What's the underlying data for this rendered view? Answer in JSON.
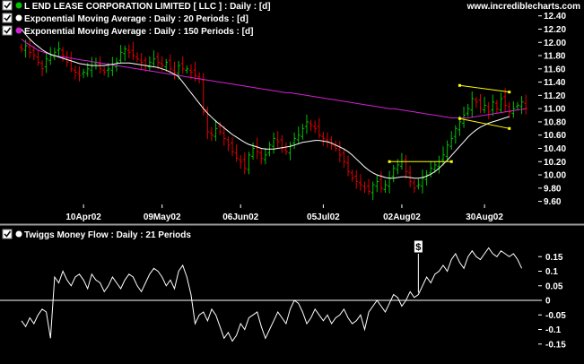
{
  "site": "www.incrediblecharts.com",
  "colors": {
    "background": "#000000",
    "text": "#ffffff",
    "up_bar": "#00c000",
    "down_bar": "#e00000",
    "ema20": "#ffffff",
    "ema150": "#d020d0",
    "trendline": "#ffff00",
    "zero_line": "#ffffff",
    "tmf_line": "#ffffff"
  },
  "legend": [
    {
      "text": "L END LEASE CORPORATION LIMITED  [ LLC ] : Daily : [d]",
      "marker": "green-dot"
    },
    {
      "text": "Exponential Moving Average : Daily : 20 Periods : [d]",
      "marker": "white-dot"
    },
    {
      "text": "Exponential Moving Average : Daily : 150 Periods : [d]",
      "marker": "magenta-dot"
    }
  ],
  "lower_legend": {
    "text": "Twiggs Money Flow : Daily : 21 Periods",
    "marker": "white-dot"
  },
  "signal_marker": "$",
  "chart_data": [
    {
      "type": "ohlc",
      "title": "L END LEASE CORPORATION LIMITED  [ LLC ] : Daily : [d]",
      "ylim": [
        9.5,
        12.45
      ],
      "yticks": [
        "12.40",
        "12.20",
        "12.00",
        "11.80",
        "11.60",
        "11.40",
        "11.20",
        "11.00",
        "10.80",
        "10.60",
        "10.40",
        "10.20",
        "10.00",
        "9.80",
        "9.60"
      ],
      "xticks": [
        {
          "label": "10Apr02",
          "day": 15
        },
        {
          "label": "09May02",
          "day": 34
        },
        {
          "label": "06Jun02",
          "day": 53
        },
        {
          "label": "05Jul02",
          "day": 73
        },
        {
          "label": "02Aug02",
          "day": 92
        },
        {
          "label": "30Aug02",
          "day": 112
        }
      ],
      "x_range_days": [
        0,
        125
      ],
      "close": [
        11.9,
        11.95,
        11.85,
        11.8,
        11.7,
        11.6,
        11.75,
        11.8,
        11.85,
        11.9,
        11.8,
        11.7,
        11.6,
        11.55,
        11.5,
        11.55,
        11.6,
        11.65,
        11.7,
        11.6,
        11.55,
        11.6,
        11.65,
        11.7,
        11.85,
        11.9,
        11.85,
        11.8,
        11.75,
        11.7,
        11.65,
        11.7,
        11.75,
        11.7,
        11.65,
        11.7,
        11.6,
        11.55,
        11.65,
        11.6,
        11.6,
        11.55,
        11.5,
        11.45,
        10.95,
        10.65,
        10.6,
        10.7,
        10.65,
        10.55,
        10.45,
        10.35,
        10.25,
        10.2,
        10.1,
        10.3,
        10.4,
        10.35,
        10.25,
        10.3,
        10.45,
        10.55,
        10.5,
        10.4,
        10.35,
        10.45,
        10.55,
        10.6,
        10.7,
        10.8,
        10.75,
        10.7,
        10.6,
        10.55,
        10.5,
        10.45,
        10.4,
        10.3,
        10.2,
        10.05,
        9.95,
        9.9,
        9.85,
        9.8,
        9.75,
        9.85,
        9.9,
        9.8,
        9.85,
        9.95,
        10.1,
        10.15,
        10.2,
        10.05,
        9.9,
        9.8,
        9.85,
        9.95,
        10.0,
        10.1,
        10.15,
        10.2,
        10.3,
        10.45,
        10.55,
        10.7,
        10.8,
        10.9,
        11.0,
        11.15,
        11.1,
        11.0,
        11.05,
        10.95,
        11.1,
        11.0,
        11.15,
        11.05,
        10.95,
        11.0,
        11.05,
        11.1,
        11.0
      ],
      "ema20": [
        12.2,
        12.12,
        12.05,
        11.99,
        11.94,
        11.89,
        11.85,
        11.82,
        11.8,
        11.78,
        11.76,
        11.74,
        11.72,
        11.7,
        11.68,
        11.67,
        11.66,
        11.65,
        11.65,
        11.65,
        11.65,
        11.66,
        11.67,
        11.68,
        11.69,
        11.69,
        11.69,
        11.68,
        11.67,
        11.66,
        11.65,
        11.64,
        11.63,
        11.62,
        11.6,
        11.58,
        11.55,
        11.52,
        11.48,
        11.4,
        11.32,
        11.24,
        11.16,
        11.08,
        11.0,
        10.93,
        10.87,
        10.81,
        10.76,
        10.71,
        10.66,
        10.61,
        10.57,
        10.53,
        10.49,
        10.46,
        10.44,
        10.42,
        10.4,
        10.39,
        10.39,
        10.39,
        10.4,
        10.41,
        10.42,
        10.43,
        10.45,
        10.47,
        10.49,
        10.5,
        10.51,
        10.52,
        10.52,
        10.51,
        10.5,
        10.48,
        10.45,
        10.42,
        10.39,
        10.35,
        10.3,
        10.24,
        10.18,
        10.12,
        10.07,
        10.03,
        10.0,
        9.98,
        9.96,
        9.95,
        9.95,
        9.96,
        9.97,
        9.97,
        9.96,
        9.95,
        9.95,
        9.96,
        9.98,
        10.01,
        10.05,
        10.1,
        10.16,
        10.22,
        10.29,
        10.36,
        10.43,
        10.5,
        10.57,
        10.63,
        10.68,
        10.72,
        10.75,
        10.78,
        10.8,
        10.82,
        10.84,
        10.86,
        10.88
      ],
      "ema150": [
        12.05,
        12.0,
        11.96,
        11.92,
        11.88,
        11.86,
        11.84,
        11.82,
        11.8,
        11.79,
        11.78,
        11.77,
        11.76,
        11.75,
        11.74,
        11.73,
        11.72,
        11.71,
        11.7,
        11.69,
        11.68,
        11.67,
        11.66,
        11.65,
        11.64,
        11.63,
        11.62,
        11.61,
        11.6,
        11.59,
        11.58,
        11.57,
        11.56,
        11.55,
        11.54,
        11.53,
        11.52,
        11.51,
        11.5,
        11.49,
        11.48,
        11.47,
        11.46,
        11.45,
        11.44,
        11.43,
        11.42,
        11.41,
        11.4,
        11.39,
        11.38,
        11.37,
        11.36,
        11.35,
        11.34,
        11.33,
        11.32,
        11.31,
        11.3,
        11.29,
        11.28,
        11.27,
        11.26,
        11.25,
        11.24,
        11.24,
        11.23,
        11.22,
        11.21,
        11.2,
        11.19,
        11.18,
        11.17,
        11.16,
        11.15,
        11.14,
        11.13,
        11.12,
        11.11,
        11.1,
        11.09,
        11.08,
        11.07,
        11.06,
        11.05,
        11.04,
        11.03,
        11.02,
        11.01,
        11.0,
        11.0,
        10.99,
        10.98,
        10.97,
        10.96,
        10.95,
        10.94,
        10.93,
        10.92,
        10.91,
        10.9,
        10.89,
        10.88,
        10.87,
        10.86,
        10.86,
        10.86,
        10.86,
        10.86,
        10.87,
        10.88,
        10.89,
        10.9,
        10.91,
        10.92,
        10.93,
        10.94,
        10.95,
        10.96,
        10.97,
        10.98,
        10.99,
        11.0
      ],
      "trendlines": [
        {
          "x1": 89,
          "y1": 10.2,
          "x2": 104,
          "y2": 10.2
        },
        {
          "x1": 106,
          "y1": 11.35,
          "x2": 118,
          "y2": 11.25
        },
        {
          "x1": 106,
          "y1": 10.85,
          "x2": 118,
          "y2": 10.7
        }
      ]
    },
    {
      "type": "line",
      "title": "Twiggs Money Flow : Daily : 21 Periods",
      "ylim": [
        -0.2,
        0.2
      ],
      "yticks": [
        "0.15",
        "0.1",
        "0.05",
        "0",
        "-0.05",
        "-0.1",
        "-0.15"
      ],
      "x_range_days": [
        0,
        125
      ],
      "signal": {
        "label": "$",
        "day": 96
      },
      "values": [
        -0.07,
        -0.09,
        -0.06,
        -0.08,
        -0.05,
        -0.03,
        -0.04,
        -0.13,
        0.08,
        0.06,
        0.1,
        0.07,
        0.05,
        0.08,
        0.09,
        0.07,
        0.04,
        0.09,
        0.07,
        0.06,
        0.03,
        0.05,
        0.08,
        0.06,
        0.04,
        0.07,
        0.09,
        0.08,
        0.05,
        0.03,
        0.06,
        0.09,
        0.11,
        0.1,
        0.08,
        0.05,
        0.07,
        0.04,
        0.1,
        0.12,
        0.08,
        0.02,
        -0.08,
        -0.05,
        -0.04,
        -0.07,
        -0.03,
        -0.05,
        -0.09,
        -0.13,
        -0.11,
        -0.14,
        -0.12,
        -0.08,
        -0.1,
        -0.06,
        -0.05,
        -0.04,
        -0.09,
        -0.13,
        -0.1,
        -0.07,
        -0.04,
        -0.06,
        -0.08,
        -0.03,
        0.0,
        -0.01,
        -0.04,
        -0.08,
        -0.06,
        -0.03,
        -0.05,
        -0.07,
        -0.05,
        -0.08,
        -0.06,
        -0.05,
        -0.03,
        -0.06,
        -0.08,
        -0.07,
        -0.05,
        -0.1,
        -0.04,
        -0.02,
        0.0,
        -0.02,
        -0.04,
        -0.01,
        0.02,
        0.01,
        -0.02,
        0.0,
        0.03,
        0.01,
        0.02,
        0.05,
        0.08,
        0.06,
        0.09,
        0.1,
        0.12,
        0.1,
        0.14,
        0.16,
        0.13,
        0.11,
        0.15,
        0.17,
        0.15,
        0.14,
        0.16,
        0.18,
        0.16,
        0.15,
        0.17,
        0.16,
        0.15,
        0.16,
        0.14,
        0.11
      ]
    }
  ]
}
